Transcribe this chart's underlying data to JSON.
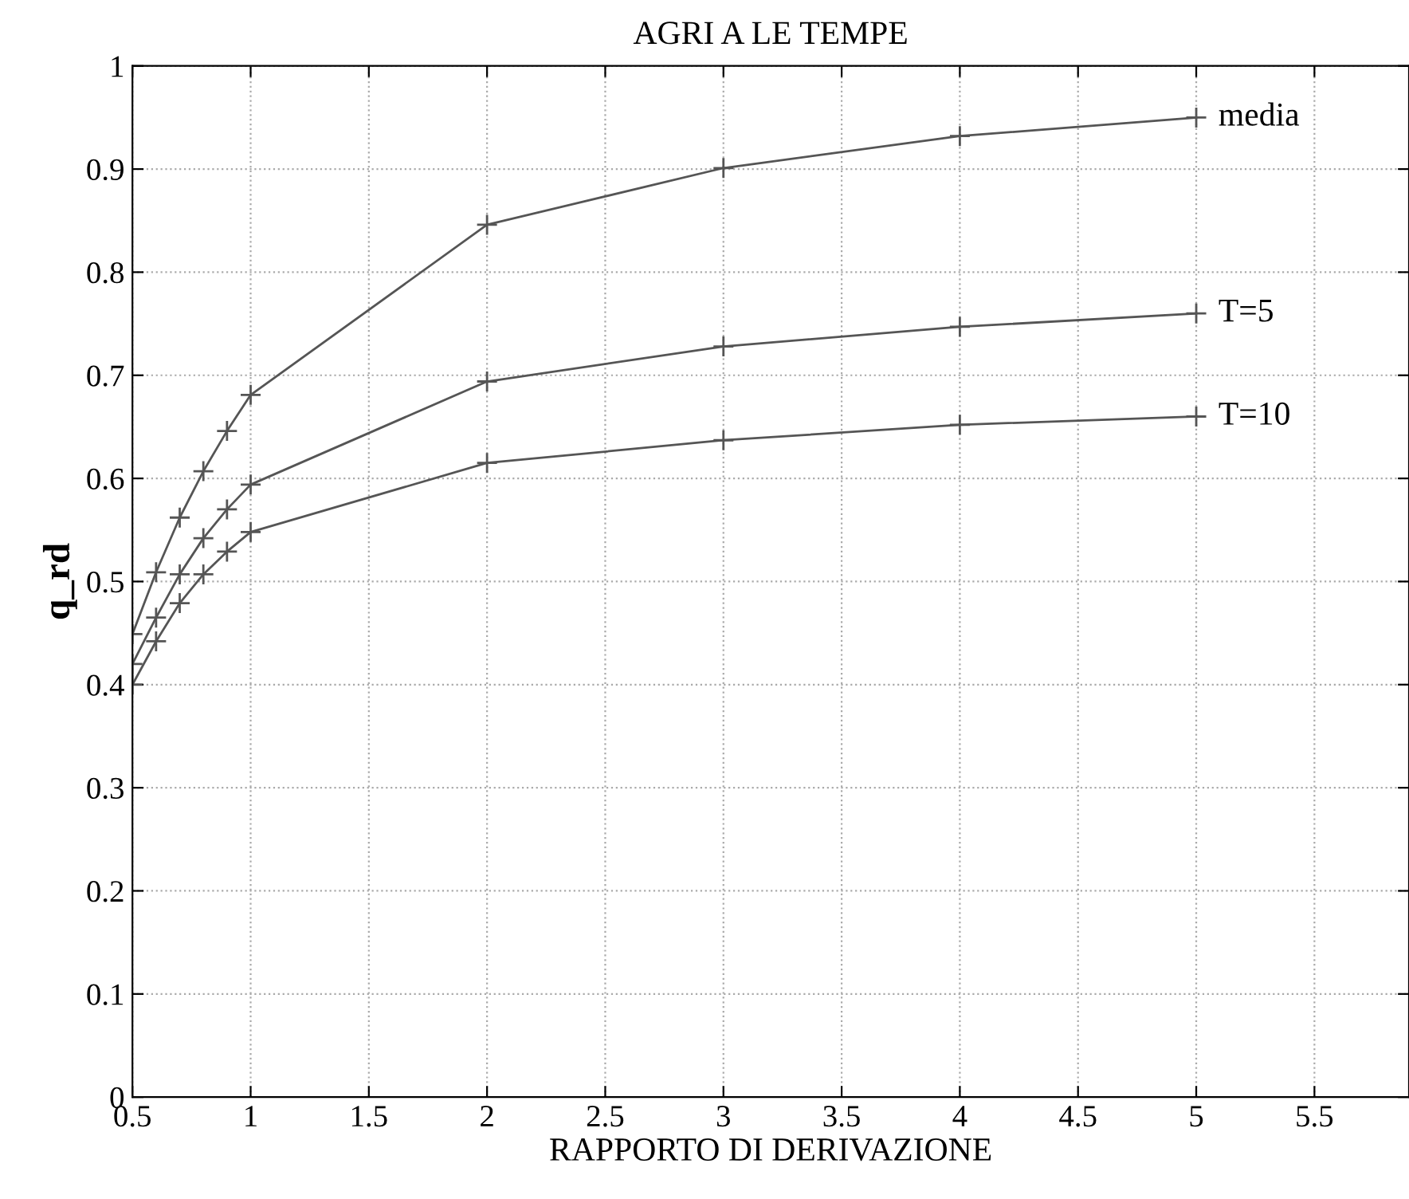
{
  "chart_data": {
    "type": "line",
    "title": "AGRI A LE TEMPE",
    "xlabel": "RAPPORTO DI DERIVAZIONE",
    "ylabel": "q_rd",
    "x": [
      0.5,
      0.6,
      0.7,
      0.8,
      0.9,
      1,
      2,
      3,
      4,
      5
    ],
    "series": [
      {
        "name": "media",
        "color": "#555555",
        "values": [
          0.449,
          0.509,
          0.562,
          0.607,
          0.646,
          0.681,
          0.846,
          0.901,
          0.932,
          0.95
        ]
      },
      {
        "name": "T=5",
        "color": "#555555",
        "values": [
          0.42,
          0.465,
          0.507,
          0.542,
          0.57,
          0.594,
          0.694,
          0.728,
          0.747,
          0.76
        ]
      },
      {
        "name": "T=10",
        "color": "#555555",
        "values": [
          0.4,
          0.442,
          0.479,
          0.507,
          0.529,
          0.548,
          0.615,
          0.637,
          0.652,
          0.66
        ]
      }
    ],
    "xlim": [
      0.5,
      5.9
    ],
    "ylim": [
      0,
      1
    ],
    "xticks": [
      0.5,
      1,
      1.5,
      2,
      2.5,
      3,
      3.5,
      4,
      4.5,
      5,
      5.5
    ],
    "yticks": [
      0,
      0.1,
      0.2,
      0.3,
      0.4,
      0.5,
      0.6,
      0.7,
      0.8,
      0.9,
      1
    ],
    "grid": true,
    "marker": "cross",
    "line_style": "solid",
    "legend": false
  }
}
